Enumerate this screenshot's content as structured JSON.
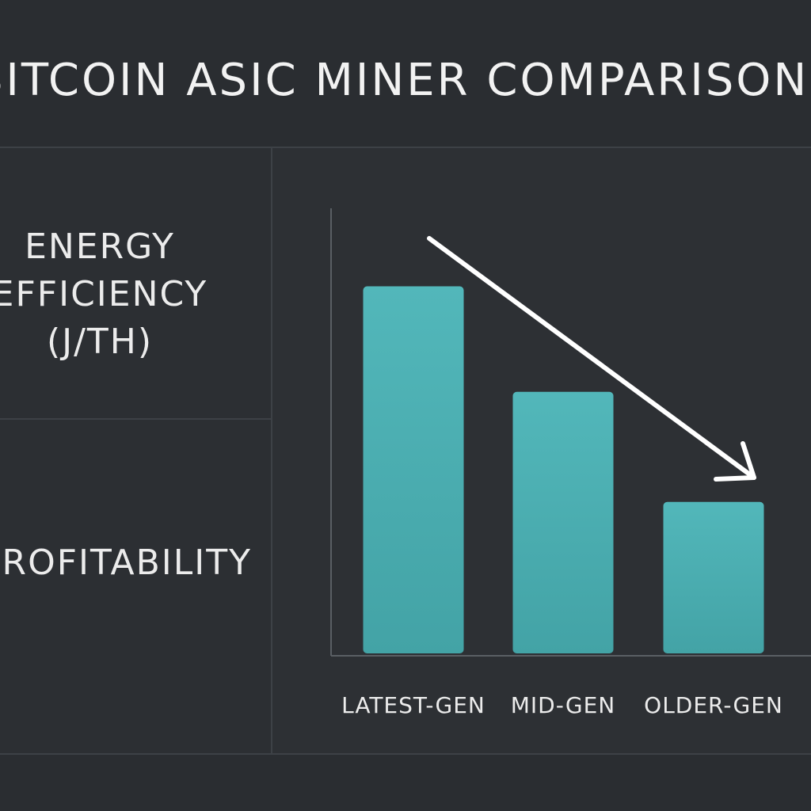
{
  "page": {
    "title": "BITCOIN ASIC MINER COMPARISON"
  },
  "left_panel": {
    "metric_1": [
      "ENERGY",
      "EFFICIENCY",
      "(J/TH)"
    ],
    "metric_2": "PROFITABILITY"
  },
  "colors": {
    "background": "#2a2d31",
    "bar": "#4fb3b7",
    "arrow": "#ffffff",
    "text": "#ececec"
  },
  "chart_data": {
    "type": "bar",
    "title": "",
    "xlabel": "",
    "ylabel": "",
    "categories": [
      "LATEST-GEN",
      "MID-GEN",
      "OLDER-GEN"
    ],
    "values": [
      80,
      57,
      33
    ],
    "ylim": [
      0,
      97
    ],
    "grid": false,
    "legend": "none",
    "annotation": "down-trend-arrow"
  }
}
